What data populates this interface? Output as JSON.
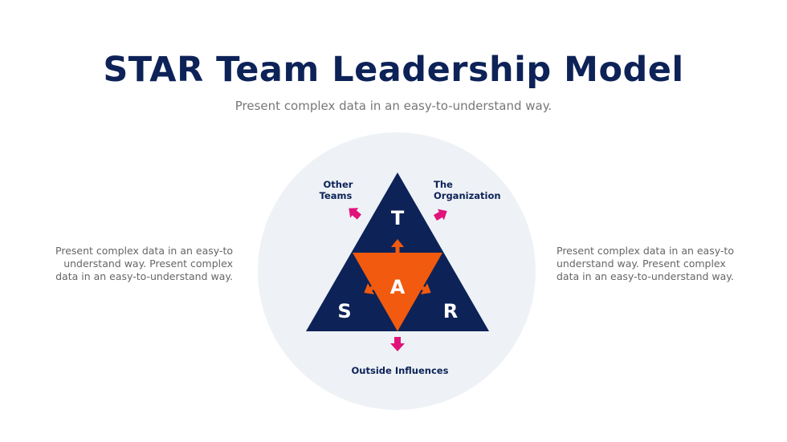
{
  "title": "STAR Team Leadership Model",
  "subtitle": "Present complex data in an easy-to-understand way.",
  "left_text": "Present complex data in an easy-to understand way. Present complex data in an easy-to-understand way.",
  "right_text": "Present complex data in an easy-to understand way. Present complex data in an easy-to-understand way.",
  "diagram": {
    "letters": {
      "t": "T",
      "s": "S",
      "a": "A",
      "r": "R"
    },
    "labels": {
      "other_1": "Other",
      "other_2": "Teams",
      "org_1": "The",
      "org_2": "Organization",
      "outside": "Outside Influences"
    },
    "colors": {
      "navy": "#0d2257",
      "orange": "#f15a0f",
      "pink": "#e0137a",
      "circle": "#eef2f6"
    }
  }
}
